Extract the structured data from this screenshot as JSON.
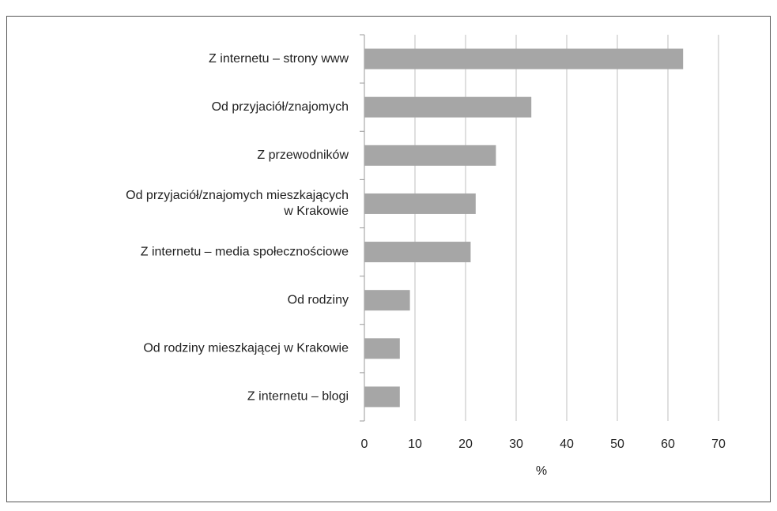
{
  "chart_data": {
    "type": "bar",
    "orientation": "horizontal",
    "categories": [
      "Z internetu – strony www",
      "Od przyjaciół/znajomych",
      "Z przewodników",
      "Od przyjaciół/znajomych mieszkających\nw Krakowie",
      "Z internetu – media społecznościowe",
      "Od rodziny",
      "Od rodziny mieszkającej w Krakowie",
      "Z internetu – blogi"
    ],
    "values": [
      63,
      33,
      26,
      22,
      21,
      9,
      7,
      7
    ],
    "color": "#a6a6a6",
    "x_label": "%",
    "xlim": [
      0,
      70
    ],
    "xticks": [
      0,
      10,
      20,
      30,
      40,
      50,
      60,
      70
    ],
    "grid": true
  }
}
